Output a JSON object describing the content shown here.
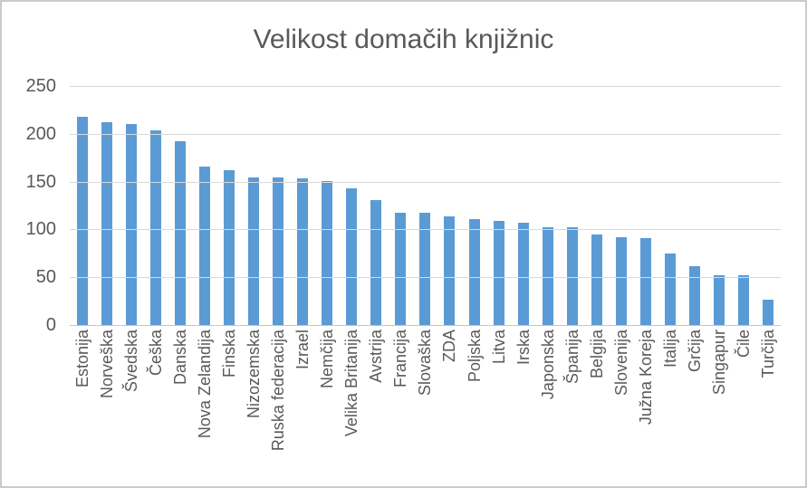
{
  "window": {
    "background": "#FFFFFF",
    "border_color": "#CBCBCB"
  },
  "chart_data": {
    "type": "bar",
    "title": "Velikost domačih knjižnic",
    "categories": [
      "Estonija",
      "Norveška",
      "Švedska",
      "Češka",
      "Danska",
      "Nova Zelandija",
      "Finska",
      "Nizozemska",
      "Ruska federacija",
      "Izrael",
      "Nemčija",
      "Velika Britanija",
      "Avstrija",
      "Francija",
      "Slovaška",
      "ZDA",
      "Poljska",
      "Litva",
      "Irska",
      "Japonska",
      "Španija",
      "Belgija",
      "Slovenija",
      "Južna Koreja",
      "Italija",
      "Grčija",
      "Singapur",
      "Čile",
      "Turčija"
    ],
    "values": [
      218,
      212,
      210,
      204,
      192,
      166,
      162,
      154,
      154,
      153,
      151,
      143,
      131,
      117,
      117,
      114,
      111,
      109,
      107,
      102,
      102,
      95,
      92,
      91,
      75,
      62,
      52,
      52,
      27
    ],
    "xlabel": "",
    "ylabel": "",
    "ylim": [
      0,
      250
    ],
    "yticks": [
      250,
      200,
      150,
      100,
      50,
      0
    ],
    "grid": "horizontal-major",
    "legend_position": "none",
    "bar_color": "#5B9BD5",
    "text_color": "#595959",
    "gridline_color": "#D9D9D9",
    "axis_line_color": "#C6C6C6"
  }
}
